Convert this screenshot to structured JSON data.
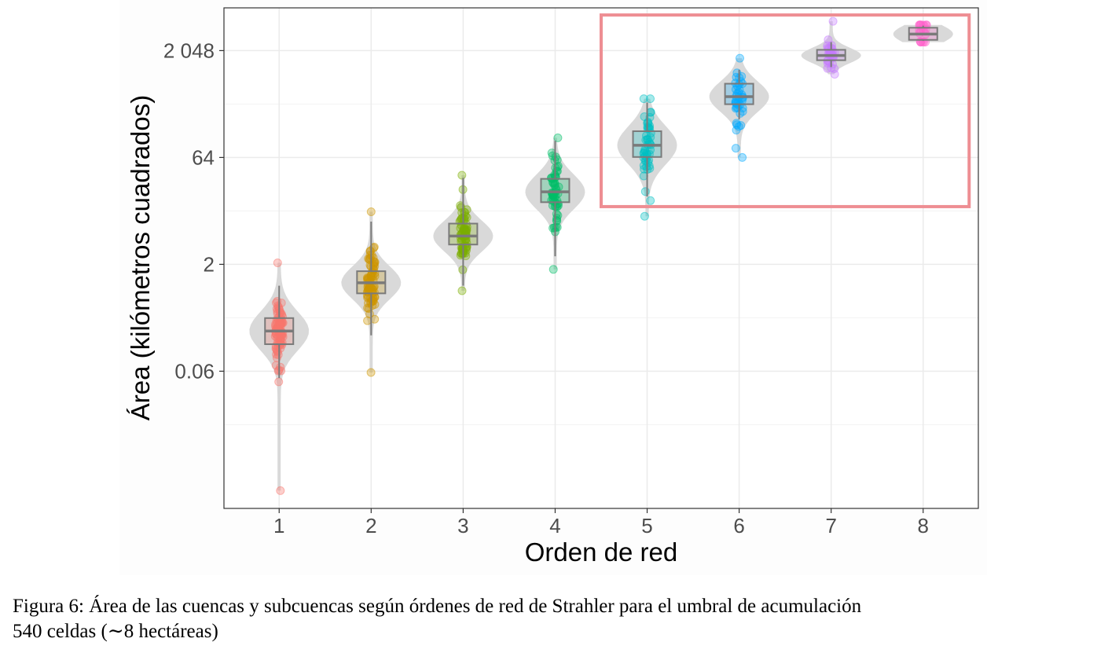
{
  "caption": {
    "line1": "Figura 6: Área de las cuencas y subcuencas según órdenes de red de Strahler para el umbral de acumulación",
    "line2": "540 celdas (∼8 hectáreas)"
  },
  "chart_data": {
    "type": "violin+box+jitter",
    "xlabel": "Orden de red",
    "ylabel": "Área (kilómetros cuadrados)",
    "y_scale": "log2",
    "ylim": [
      0.00073,
      8192
    ],
    "categories": [
      "1",
      "2",
      "3",
      "4",
      "5",
      "6",
      "7",
      "8"
    ],
    "y_ticks": [
      {
        "value": 0.0625,
        "label": "0.06"
      },
      {
        "value": 2,
        "label": "2"
      },
      {
        "value": 64,
        "label": "64"
      },
      {
        "value": 2048,
        "label": "2 048"
      }
    ],
    "grid": true,
    "series": [
      {
        "category": "1",
        "color": "#F8766D",
        "min": 0.0013,
        "q1": 0.15,
        "median": 0.23,
        "q3": 0.35,
        "max": 2.1,
        "whisker_low": 0.05,
        "whisker_high": 1.0
      },
      {
        "category": "2",
        "color": "#CD9600",
        "min": 0.06,
        "q1": 0.78,
        "median": 1.1,
        "q3": 1.6,
        "max": 11.0,
        "whisker_low": 0.2,
        "whisker_high": 8.0
      },
      {
        "category": "3",
        "color": "#7CAE00",
        "min": 0.85,
        "q1": 3.8,
        "median": 5.0,
        "q3": 7.5,
        "max": 36.0,
        "whisker_low": 1.0,
        "whisker_high": 33.0
      },
      {
        "category": "4",
        "color": "#00BE67",
        "min": 1.7,
        "q1": 15.0,
        "median": 21.0,
        "q3": 32.0,
        "max": 121.0,
        "whisker_low": 2.6,
        "whisker_high": 110.0
      },
      {
        "category": "5",
        "color": "#00BFC4",
        "min": 9.5,
        "q1": 65.0,
        "median": 95.0,
        "q3": 150.0,
        "max": 430.0,
        "whisker_low": 18.0,
        "whisker_high": 380.0
      },
      {
        "category": "6",
        "color": "#00A9FF",
        "min": 64.0,
        "q1": 360.0,
        "median": 460.0,
        "q3": 700.0,
        "max": 1600.0,
        "whisker_low": 220.0,
        "whisker_high": 1100.0
      },
      {
        "category": "7",
        "color": "#C77CFF",
        "min": 950.0,
        "q1": 1500.0,
        "median": 1750.0,
        "q3": 2100.0,
        "max": 5300.0,
        "whisker_low": 1200.0,
        "whisker_high": 2700.0
      },
      {
        "category": "8",
        "color": "#FF61CC",
        "min": 2700.0,
        "q1": 2900.0,
        "median": 3500.0,
        "q3": 4300.0,
        "max": 4700.0,
        "whisker_low": 2800.0,
        "whisker_high": 4600.0
      }
    ],
    "highlight": {
      "x_from": "5",
      "x_to": "8",
      "y_from": 13.0,
      "y_to": 6500.0,
      "color": "#EE8E93"
    }
  }
}
